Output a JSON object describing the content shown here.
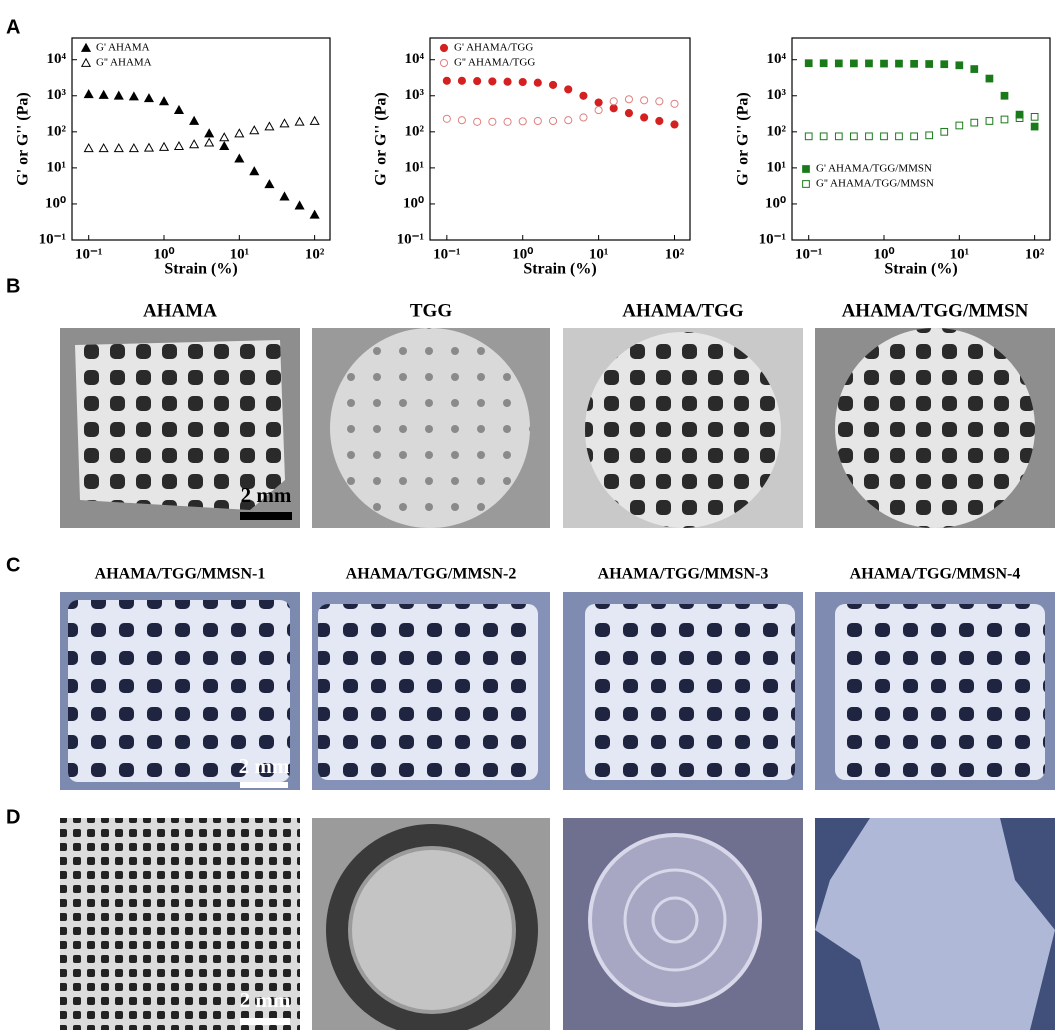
{
  "panel_labels": [
    "A",
    "B",
    "C",
    "D"
  ],
  "row_b": {
    "captions": [
      "AHAMA",
      "TGG",
      "AHAMA/TGG",
      "AHAMA/TGG/MMSN"
    ]
  },
  "row_c": {
    "captions": [
      "AHAMA/TGG/MMSN-1",
      "AHAMA/TGG/MMSN-2",
      "AHAMA/TGG/MMSN-3",
      "AHAMA/TGG/MMSN-4"
    ]
  },
  "scale_bar": "2 mm",
  "chart_data": [
    {
      "type": "scatter",
      "x_label": "Strain (%)",
      "y_label": "G' or G'' (Pa)",
      "log_x": true,
      "log_y": true,
      "legend": "upper left",
      "xlim": [
        0.06,
        160
      ],
      "ylim": [
        0.1,
        40000
      ],
      "xticks": [
        {
          "value": 0.1,
          "label": "10⁻¹"
        },
        {
          "value": 1,
          "label": "10⁰"
        },
        {
          "value": 10,
          "label": "10¹"
        },
        {
          "value": 100,
          "label": "10²"
        }
      ],
      "yticks": [
        {
          "value": 0.1,
          "label": "10⁻¹"
        },
        {
          "value": 1,
          "label": "10⁰"
        },
        {
          "value": 10,
          "label": "10¹"
        },
        {
          "value": 100,
          "label": "10²"
        },
        {
          "value": 1000,
          "label": "10³"
        },
        {
          "value": 10000,
          "label": "10⁴"
        }
      ],
      "x": [
        0.1,
        0.158,
        0.251,
        0.398,
        0.631,
        1,
        1.58,
        2.51,
        3.98,
        6.31,
        10,
        15.8,
        25.1,
        39.8,
        63.1,
        100
      ],
      "series": [
        {
          "name": "G' AHAMA",
          "color": "#000000",
          "marker": "triangle",
          "filled": true,
          "values": [
            1100,
            1050,
            1000,
            950,
            850,
            700,
            400,
            200,
            90,
            40,
            18,
            8,
            3.5,
            1.6,
            0.9,
            0.5
          ]
        },
        {
          "name": "G'' AHAMA",
          "color": "#000000",
          "marker": "triangle",
          "filled": false,
          "values": [
            35,
            35,
            35,
            35,
            36,
            38,
            40,
            45,
            50,
            70,
            90,
            110,
            140,
            170,
            190,
            200
          ]
        }
      ]
    },
    {
      "type": "scatter",
      "x_label": "Strain (%)",
      "y_label": "G' or G'' (Pa)",
      "log_x": true,
      "log_y": true,
      "legend": "upper left",
      "xlim": [
        0.06,
        160
      ],
      "ylim": [
        0.1,
        40000
      ],
      "xticks": [
        {
          "value": 0.1,
          "label": "10⁻¹"
        },
        {
          "value": 1,
          "label": "10⁰"
        },
        {
          "value": 10,
          "label": "10¹"
        },
        {
          "value": 100,
          "label": "10²"
        }
      ],
      "yticks": [
        {
          "value": 0.1,
          "label": "10⁻¹"
        },
        {
          "value": 1,
          "label": "10⁰"
        },
        {
          "value": 10,
          "label": "10¹"
        },
        {
          "value": 100,
          "label": "10²"
        },
        {
          "value": 1000,
          "label": "10³"
        },
        {
          "value": 10000,
          "label": "10⁴"
        }
      ],
      "x": [
        0.1,
        0.158,
        0.251,
        0.398,
        0.631,
        1,
        1.58,
        2.51,
        3.98,
        6.31,
        10,
        15.8,
        25.1,
        39.8,
        63.1,
        100
      ],
      "series": [
        {
          "name": "G' AHAMA/TGG",
          "color": "#d42020",
          "marker": "circle",
          "filled": true,
          "values": [
            2600,
            2600,
            2550,
            2500,
            2450,
            2400,
            2300,
            2000,
            1500,
            1000,
            650,
            450,
            330,
            250,
            200,
            160
          ]
        },
        {
          "name": "G'' AHAMA/TGG",
          "color": "#e08080",
          "marker": "circle",
          "filled": false,
          "values": [
            230,
            210,
            190,
            190,
            190,
            195,
            200,
            200,
            210,
            250,
            400,
            700,
            800,
            750,
            700,
            600
          ]
        }
      ]
    },
    {
      "type": "scatter",
      "x_label": "Strain (%)",
      "y_label": "G' or G'' (Pa)",
      "log_x": true,
      "log_y": true,
      "legend": "center left",
      "xlim": [
        0.06,
        160
      ],
      "ylim": [
        0.1,
        40000
      ],
      "xticks": [
        {
          "value": 0.1,
          "label": "10⁻¹"
        },
        {
          "value": 1,
          "label": "10⁰"
        },
        {
          "value": 10,
          "label": "10¹"
        },
        {
          "value": 100,
          "label": "10²"
        }
      ],
      "yticks": [
        {
          "value": 0.1,
          "label": "10⁻¹"
        },
        {
          "value": 1,
          "label": "10⁰"
        },
        {
          "value": 10,
          "label": "10¹"
        },
        {
          "value": 100,
          "label": "10²"
        },
        {
          "value": 1000,
          "label": "10³"
        },
        {
          "value": 10000,
          "label": "10⁴"
        }
      ],
      "x": [
        0.1,
        0.158,
        0.251,
        0.398,
        0.631,
        1,
        1.58,
        2.51,
        3.98,
        6.31,
        10,
        15.8,
        25.1,
        39.8,
        63.1,
        100
      ],
      "series": [
        {
          "name": "G' AHAMA/TGG/MMSN",
          "color": "#1a7a1a",
          "marker": "square",
          "filled": true,
          "values": [
            8000,
            8000,
            7900,
            7900,
            7900,
            7800,
            7800,
            7700,
            7600,
            7500,
            7000,
            5500,
            3000,
            1000,
            300,
            140
          ]
        },
        {
          "name": "G'' AHAMA/TGG/MMSN",
          "color": "#1a7a1a",
          "marker": "square",
          "filled": false,
          "values": [
            75,
            75,
            75,
            75,
            75,
            75,
            75,
            75,
            80,
            100,
            150,
            180,
            200,
            220,
            240,
            260
          ]
        }
      ]
    }
  ]
}
